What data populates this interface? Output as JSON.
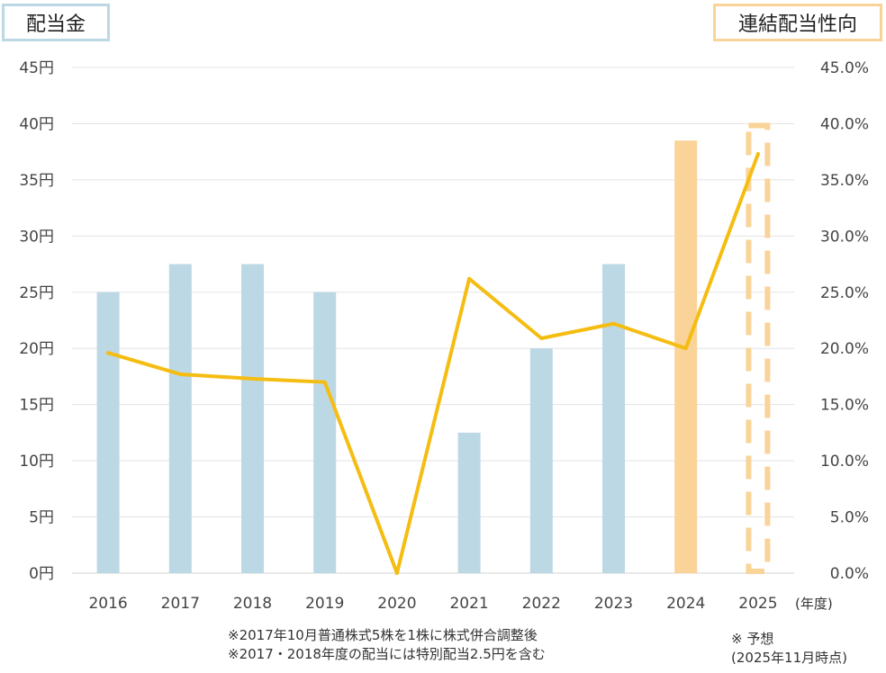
{
  "legend": {
    "left_label": "配当金",
    "right_label": "連結配当性向"
  },
  "chart_data": {
    "type": "bar+line",
    "categories": [
      "2016",
      "2017",
      "2018",
      "2019",
      "2020",
      "2021",
      "2022",
      "2023",
      "2024",
      "2025"
    ],
    "x_unit_label": "(年度)",
    "series": [
      {
        "name": "配当金",
        "axis": "left",
        "type": "bar",
        "unit": "円",
        "values": [
          25,
          27.5,
          27.5,
          25,
          0,
          12.5,
          20,
          27.5,
          38.5,
          40
        ],
        "colors": [
          "#bcd8e4",
          "#bcd8e4",
          "#bcd8e4",
          "#bcd8e4",
          "#bcd8e4",
          "#bcd8e4",
          "#bcd8e4",
          "#bcd8e4",
          "#fad398",
          "#fad398"
        ],
        "forecast_index": 9
      },
      {
        "name": "連結配当性向",
        "axis": "right",
        "type": "line",
        "unit": "%",
        "values": [
          19.6,
          17.7,
          17.3,
          17.0,
          0.0,
          26.2,
          20.9,
          22.2,
          20.0,
          37.3
        ],
        "color": "#f5bd12"
      }
    ],
    "left_axis": {
      "ylim": [
        0,
        45
      ],
      "ticks": [
        0,
        5,
        10,
        15,
        20,
        25,
        30,
        35,
        40,
        45
      ],
      "tick_labels": [
        "0円",
        "5円",
        "10円",
        "15円",
        "20円",
        "25円",
        "30円",
        "35円",
        "40円",
        "45円"
      ]
    },
    "right_axis": {
      "ylim": [
        0,
        45
      ],
      "ticks": [
        0,
        5,
        10,
        15,
        20,
        25,
        30,
        35,
        40,
        45
      ],
      "tick_labels": [
        "0.0%",
        "5.0%",
        "10.0%",
        "15.0%",
        "20.0%",
        "25.0%",
        "30.0%",
        "35.0%",
        "40.0%",
        "45.0%"
      ]
    },
    "grid": true
  },
  "footnotes": {
    "left_line1": "※2017年10月普通株式5株を1株に株式併合調整後",
    "left_line2": "※2017・2018年度の配当には特別配当2.5円を含む",
    "right_line1": "※ 予想",
    "right_line2": "(2025年11月時点)"
  }
}
